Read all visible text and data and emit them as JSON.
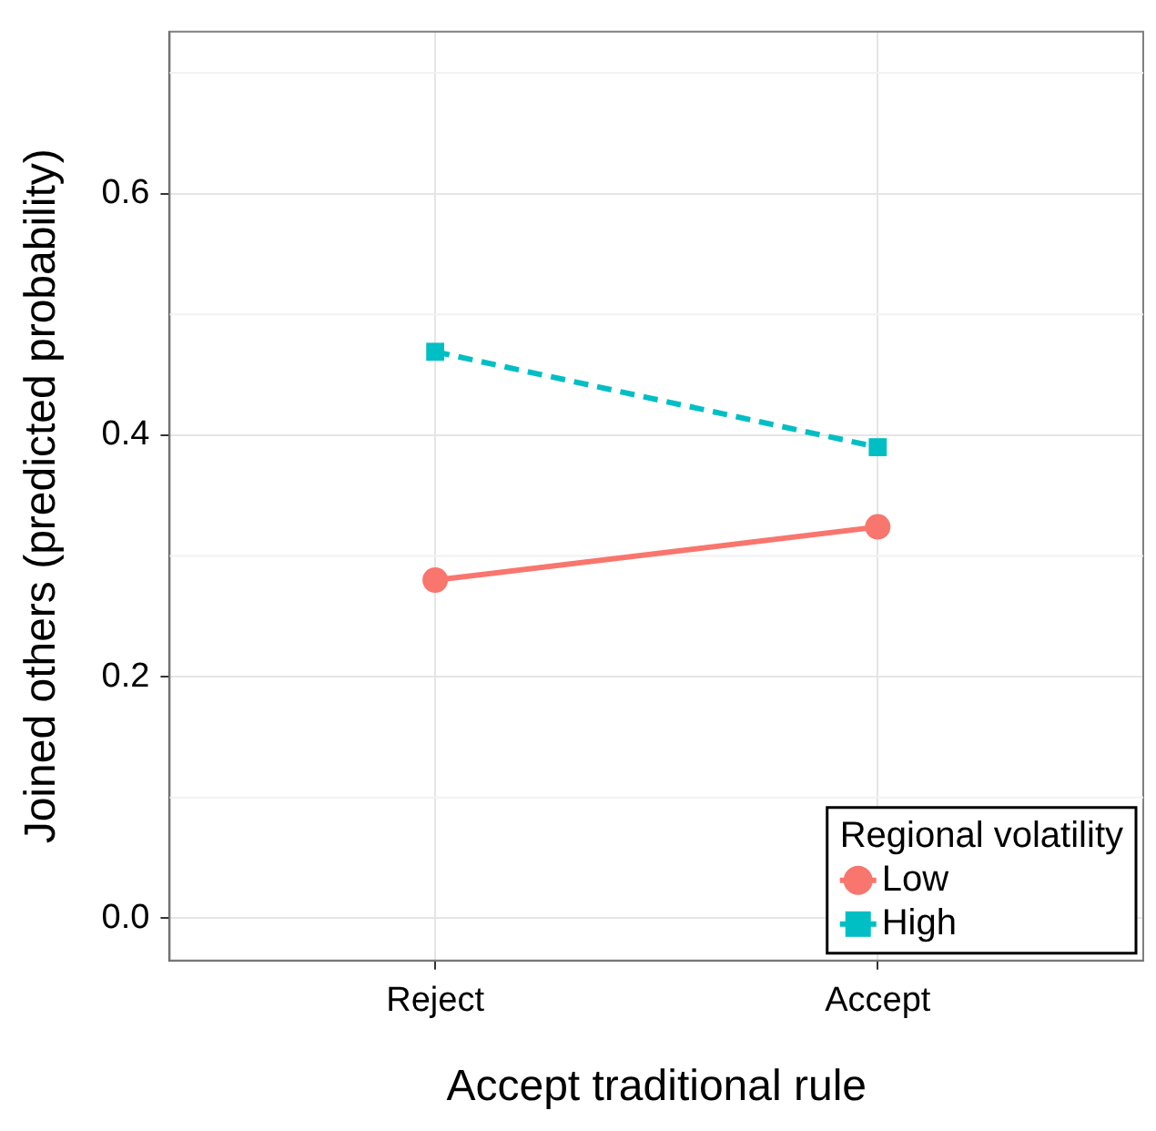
{
  "chart_data": {
    "type": "line",
    "xlabel": "Accept traditional rule",
    "ylabel": "Joined others (predicted probability)",
    "legend_title": "Regional volatility",
    "categories": [
      "Reject",
      "Accept"
    ],
    "series": [
      {
        "name": "Low",
        "color": "#f8766d",
        "values": [
          0.28,
          0.324
        ],
        "marker": "circle",
        "line_style": "solid"
      },
      {
        "name": "High",
        "color": "#00bfc4",
        "values": [
          0.469,
          0.39
        ],
        "marker": "square",
        "line_style": "dashed"
      }
    ],
    "ylim": [
      -0.035,
      0.734
    ],
    "yticks": [
      {
        "value": 0,
        "label": "0.0"
      },
      {
        "value": 0.2,
        "label": "0.2"
      },
      {
        "value": 0.4,
        "label": "0.4"
      },
      {
        "value": 0.6,
        "label": "0.6"
      }
    ],
    "grid": true,
    "legend": "bottom right"
  }
}
